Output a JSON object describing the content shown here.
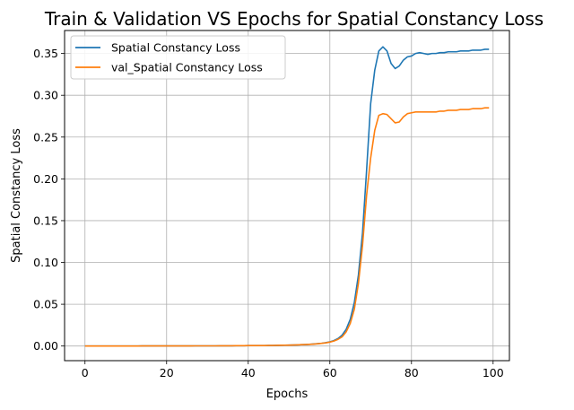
{
  "chart_data": {
    "type": "line",
    "title": "Train & Validation VS Epochs for Spatial Constancy Loss",
    "xlabel": "Epochs",
    "ylabel": "Spatial Constancy Loss",
    "xlim": [
      -5,
      104
    ],
    "ylim": [
      -0.0175,
      0.3775
    ],
    "x_ticks": [
      0,
      20,
      40,
      60,
      80,
      100
    ],
    "y_ticks": [
      0.0,
      0.05,
      0.1,
      0.15,
      0.2,
      0.25,
      0.3,
      0.35
    ],
    "y_tick_labels": [
      "0.00",
      "0.05",
      "0.10",
      "0.15",
      "0.20",
      "0.25",
      "0.30",
      "0.35"
    ],
    "x_tick_labels": [
      "0",
      "20",
      "40",
      "60",
      "80",
      "100"
    ],
    "grid": true,
    "legend_position": "top-left",
    "x": [
      0,
      1,
      2,
      3,
      4,
      5,
      6,
      7,
      8,
      9,
      10,
      11,
      12,
      13,
      14,
      15,
      16,
      17,
      18,
      19,
      20,
      21,
      22,
      23,
      24,
      25,
      26,
      27,
      28,
      29,
      30,
      31,
      32,
      33,
      34,
      35,
      36,
      37,
      38,
      39,
      40,
      41,
      42,
      43,
      44,
      45,
      46,
      47,
      48,
      49,
      50,
      51,
      52,
      53,
      54,
      55,
      56,
      57,
      58,
      59,
      60,
      61,
      62,
      63,
      64,
      65,
      66,
      67,
      68,
      69,
      70,
      71,
      72,
      73,
      74,
      75,
      76,
      77,
      78,
      79,
      80,
      81,
      82,
      83,
      84,
      85,
      86,
      87,
      88,
      89,
      90,
      91,
      92,
      93,
      94,
      95,
      96,
      97,
      98,
      99
    ],
    "series": [
      {
        "name": "Spatial Constancy Loss",
        "color": "#1f77b4",
        "values": [
          0.0,
          0.0,
          0.0,
          0.0,
          0.0,
          0.0,
          0.0,
          0.0,
          0.0,
          0.0,
          0.0,
          0.0,
          0.0,
          0.0,
          0.0001,
          0.0001,
          0.0001,
          0.0001,
          0.0001,
          0.0001,
          0.0001,
          0.0001,
          0.0001,
          0.0001,
          0.0001,
          0.0001,
          0.0001,
          0.0002,
          0.0002,
          0.0002,
          0.0002,
          0.0002,
          0.0002,
          0.0003,
          0.0003,
          0.0003,
          0.0003,
          0.0004,
          0.0004,
          0.0004,
          0.0005,
          0.0005,
          0.0005,
          0.0006,
          0.0006,
          0.0007,
          0.0007,
          0.0008,
          0.0009,
          0.001,
          0.0011,
          0.0012,
          0.0014,
          0.0016,
          0.0018,
          0.002,
          0.0024,
          0.0028,
          0.0033,
          0.004,
          0.005,
          0.0065,
          0.009,
          0.013,
          0.02,
          0.032,
          0.052,
          0.085,
          0.135,
          0.21,
          0.29,
          0.33,
          0.353,
          0.358,
          0.353,
          0.338,
          0.332,
          0.335,
          0.342,
          0.346,
          0.347,
          0.35,
          0.351,
          0.35,
          0.349,
          0.35,
          0.35,
          0.351,
          0.351,
          0.352,
          0.352,
          0.352,
          0.353,
          0.353,
          0.353,
          0.354,
          0.354,
          0.354,
          0.355,
          0.355
        ]
      },
      {
        "name": "val_Spatial Constancy Loss",
        "color": "#ff7f0e",
        "values": [
          0.0,
          0.0,
          0.0,
          0.0,
          0.0,
          0.0,
          0.0,
          0.0,
          0.0,
          0.0,
          0.0,
          0.0,
          0.0,
          0.0,
          0.0001,
          0.0001,
          0.0001,
          0.0001,
          0.0001,
          0.0001,
          0.0001,
          0.0001,
          0.0001,
          0.0001,
          0.0001,
          0.0001,
          0.0001,
          0.0002,
          0.0002,
          0.0002,
          0.0002,
          0.0002,
          0.0002,
          0.0003,
          0.0003,
          0.0003,
          0.0003,
          0.0004,
          0.0004,
          0.0004,
          0.0005,
          0.0005,
          0.0005,
          0.0006,
          0.0006,
          0.0007,
          0.0007,
          0.0008,
          0.0009,
          0.001,
          0.0011,
          0.0012,
          0.0014,
          0.0016,
          0.0018,
          0.002,
          0.0023,
          0.0027,
          0.0032,
          0.0038,
          0.0047,
          0.006,
          0.008,
          0.011,
          0.017,
          0.027,
          0.044,
          0.075,
          0.12,
          0.18,
          0.225,
          0.258,
          0.276,
          0.278,
          0.277,
          0.272,
          0.267,
          0.268,
          0.274,
          0.278,
          0.279,
          0.28,
          0.28,
          0.28,
          0.28,
          0.28,
          0.28,
          0.281,
          0.281,
          0.282,
          0.282,
          0.282,
          0.283,
          0.283,
          0.283,
          0.284,
          0.284,
          0.284,
          0.285,
          0.285
        ]
      }
    ]
  }
}
